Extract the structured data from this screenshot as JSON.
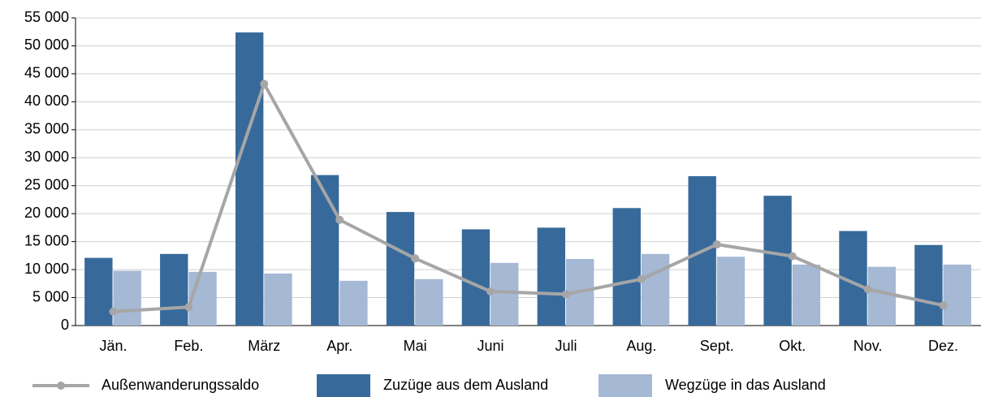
{
  "chart_data": {
    "type": "bar_line",
    "categories": [
      "Jän.",
      "Feb.",
      "März",
      "Apr.",
      "Mai",
      "Juni",
      "Juli",
      "Aug.",
      "Sept.",
      "Okt.",
      "Nov.",
      "Dez."
    ],
    "series": [
      {
        "name": "Außenwanderungssaldo",
        "type": "line",
        "color": "#a6a6a6",
        "values": [
          2500,
          3300,
          43200,
          18900,
          12000,
          6100,
          5600,
          8300,
          14500,
          12400,
          6500,
          3600
        ]
      },
      {
        "name": "Zuzüge aus dem Ausland",
        "type": "bar",
        "color": "#376a9b",
        "values": [
          12100,
          12800,
          52400,
          26900,
          20300,
          17200,
          17500,
          21000,
          26700,
          23200,
          16900,
          14400
        ]
      },
      {
        "name": "Wegzüge in das Ausland",
        "type": "bar",
        "color": "#a5b8d4",
        "values": [
          9800,
          9600,
          9300,
          8000,
          8300,
          11200,
          11900,
          12800,
          12300,
          10900,
          10500,
          10900
        ]
      }
    ],
    "ylim": [
      0,
      55000
    ],
    "yticks": [
      0,
      {
        "value": 5000,
        "label": "5 000"
      },
      {
        "value": 10000,
        "label": "10 000"
      },
      {
        "value": 15000,
        "label": "15 000"
      },
      {
        "value": 20000,
        "label": "20 000"
      },
      {
        "value": 25000,
        "label": "25 000"
      },
      {
        "value": 30000,
        "label": "30 000"
      },
      {
        "value": 35000,
        "label": "35 000"
      },
      {
        "value": 40000,
        "label": "40 000"
      },
      {
        "value": 45000,
        "label": "45 000"
      },
      {
        "value": 50000,
        "label": "50 000"
      },
      {
        "value": 55000,
        "label": "55 000"
      }
    ],
    "grid": true,
    "legend": "bottom"
  }
}
